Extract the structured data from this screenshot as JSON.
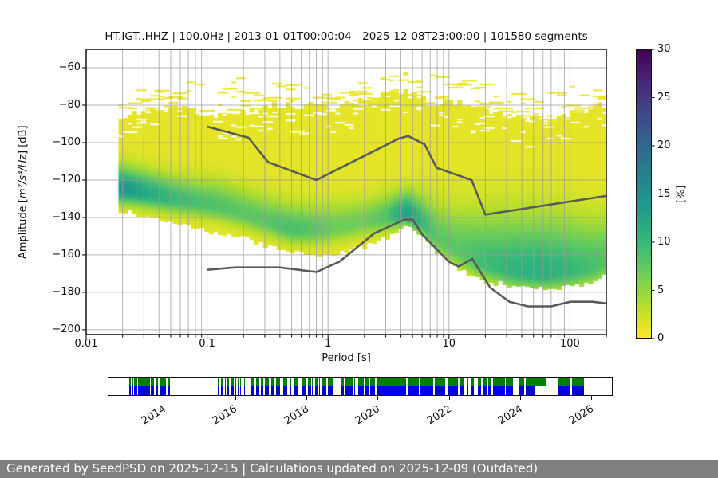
{
  "title": "HT.IGT..HHZ | 100.0Hz | 2013-01-01T00:00:04 - 2025-12-08T23:00:00 | 101580 segments",
  "axes_labels": {
    "xlabel": "Period [s]",
    "ylabel_prefix": "Amplitude [",
    "ylabel_math": "m²/s⁴/Hz",
    "ylabel_suffix": "] [dB]"
  },
  "colors": {
    "noise_model_line": "#5a5a5a",
    "grid": "#9b9b9b",
    "spine": "#111111",
    "footer_bg": "#7f7f7f",
    "footer_text": "#ffffff"
  },
  "chart_data": {
    "type": "heatmap",
    "title": "HT.IGT..HHZ | 100.0Hz | 2013-01-01T00:00:04 - 2025-12-08T23:00:00 | 101580 segments",
    "xlabel": "Period [s]",
    "ylabel": "Amplitude [m²/s⁴/Hz] [dB]",
    "x_scale": "log",
    "grid": true,
    "xlim": [
      0.01,
      200
    ],
    "ylim": [
      -202.6,
      -50.2
    ],
    "x_major_ticks": [
      0.01,
      0.1,
      1,
      10,
      100
    ],
    "x_major_tick_labels": [
      "0.01",
      "0.1",
      "1",
      "10",
      "100"
    ],
    "y_major_ticks": [
      -60,
      -80,
      -100,
      -120,
      -140,
      -160,
      -180,
      -200
    ],
    "y_major_tick_labels": [
      "−60",
      "−80",
      "−100",
      "−120",
      "−140",
      "−160",
      "−180",
      "−200"
    ],
    "noise_models": {
      "high": [
        [
          0.1,
          -91.5
        ],
        [
          0.22,
          -97.4
        ],
        [
          0.32,
          -110.5
        ],
        [
          0.8,
          -120.0
        ],
        [
          3.8,
          -98.0
        ],
        [
          4.6,
          -96.5
        ],
        [
          6.3,
          -101.0
        ],
        [
          7.9,
          -113.5
        ],
        [
          15.4,
          -120.0
        ],
        [
          20,
          -138.5
        ],
        [
          200,
          -128.5
        ]
      ],
      "low": [
        [
          0.1,
          -168.0
        ],
        [
          0.17,
          -166.7
        ],
        [
          0.4,
          -166.7
        ],
        [
          0.8,
          -169.2
        ],
        [
          1.24,
          -163.7
        ],
        [
          2.4,
          -148.6
        ],
        [
          4.3,
          -141.1
        ],
        [
          5,
          -141.1
        ],
        [
          6,
          -149.0
        ],
        [
          10,
          -163.7
        ],
        [
          12,
          -166.2
        ],
        [
          15.6,
          -162.1
        ],
        [
          21.9,
          -177.5
        ],
        [
          31.6,
          -185.0
        ],
        [
          45,
          -187.5
        ],
        [
          70,
          -187.5
        ],
        [
          101,
          -185.0
        ],
        [
          154,
          -185.0
        ],
        [
          200,
          -185.9
        ]
      ]
    },
    "ppsd": {
      "period_range": [
        0.0185,
        200
      ],
      "bins": 108,
      "periods": [
        0.02,
        0.03,
        0.05,
        0.08,
        0.12,
        0.2,
        0.3,
        0.5,
        0.8,
        1.2,
        2,
        3,
        4.5,
        6,
        8,
        12,
        20,
        35,
        60,
        100,
        150,
        200
      ],
      "solid_top_db": [
        -86,
        -83,
        -82,
        -83,
        -85,
        -84,
        -81,
        -80,
        -82,
        -81,
        -77,
        -74,
        -72,
        -75,
        -79,
        -78,
        -82,
        -87,
        -88,
        -85,
        -83,
        -80
      ],
      "mode_db": [
        -125,
        -127,
        -130,
        -132,
        -134,
        -138,
        -142,
        -146.5,
        -147,
        -145.5,
        -142.5,
        -140,
        -138,
        -143,
        -151,
        -158,
        -165,
        -169,
        -170,
        -169,
        -167,
        -164
      ],
      "bottom_db": [
        -136,
        -139,
        -143,
        -146,
        -148,
        -151,
        -155,
        -158,
        -160,
        -159,
        -156,
        -151,
        -144,
        -150,
        -158,
        -167,
        -174,
        -177,
        -178,
        -177,
        -174,
        -171
      ],
      "peak_pct": [
        13,
        11,
        9,
        8,
        7.5,
        7,
        7,
        8,
        7,
        6,
        6,
        7.5,
        12,
        9,
        7,
        7,
        8.5,
        9.5,
        10,
        9,
        8,
        7.5
      ],
      "spread_up_db": [
        8,
        8,
        8,
        8,
        9,
        9,
        9,
        9,
        9,
        9,
        8,
        8,
        8,
        10,
        12,
        15,
        18,
        20,
        20,
        19,
        17,
        16
      ],
      "spread_dn_db": [
        5,
        5,
        5,
        5,
        5,
        5,
        5,
        5,
        5,
        5,
        5,
        5,
        4,
        5,
        6,
        6,
        6,
        6,
        6,
        6,
        6,
        6
      ],
      "frag_top_db": [
        -72,
        -70,
        -68,
        -67,
        -66,
        -64,
        -63,
        -68,
        -71,
        -70,
        -67,
        -64,
        -62,
        -62,
        -63,
        -65,
        -68,
        -72,
        -70,
        -66,
        -63,
        -62
      ]
    },
    "colorbar": {
      "label": "[%]",
      "min": 0,
      "max": 30,
      "ticks": [
        0,
        5,
        10,
        15,
        20,
        25,
        30
      ],
      "tick_labels": [
        "0",
        "5",
        "10",
        "15",
        "20",
        "25",
        "30"
      ],
      "gradient_bottom_to_top": [
        "#fde725",
        "#b5de2b",
        "#6ece58",
        "#35b779",
        "#1f9e89",
        "#26828e",
        "#31688e",
        "#3e4989",
        "#482878",
        "#440154"
      ]
    },
    "timeline": {
      "xlim": [
        2012.43,
        2026.6
      ],
      "year_ticks": [
        2014,
        2016,
        2018,
        2020,
        2022,
        2024,
        2026
      ],
      "year_tick_labels": [
        "2014",
        "2016",
        "2018",
        "2020",
        "2022",
        "2024",
        "2026"
      ],
      "green": "#008000",
      "blue": "#0000e0",
      "segments": [
        [
          2013.04,
          2013.1,
          "b"
        ],
        [
          2013.12,
          2013.16,
          "b"
        ],
        [
          2013.18,
          2013.27,
          "b"
        ],
        [
          2013.3,
          2013.33,
          "b"
        ],
        [
          2013.36,
          2013.45,
          "b"
        ],
        [
          2013.48,
          2013.56,
          "b"
        ],
        [
          2013.59,
          2013.62,
          "b"
        ],
        [
          2013.65,
          2013.75,
          "b"
        ],
        [
          2013.78,
          2013.86,
          "b"
        ],
        [
          2013.92,
          2014.08,
          "b"
        ],
        [
          2014.11,
          2014.18,
          "b"
        ],
        [
          2015.53,
          2015.56,
          "b"
        ],
        [
          2015.63,
          2015.66,
          "b"
        ],
        [
          2015.73,
          2015.76,
          "b"
        ],
        [
          2015.81,
          2015.84,
          "b"
        ],
        [
          2015.91,
          2015.97,
          "b"
        ],
        [
          2016.01,
          2016.04,
          "b"
        ],
        [
          2016.09,
          2016.12,
          "b"
        ],
        [
          2016.16,
          2016.19,
          "b"
        ],
        [
          2016.26,
          2016.29,
          "b"
        ],
        [
          2016.46,
          2016.54,
          "b"
        ],
        [
          2016.61,
          2016.69,
          "b"
        ],
        [
          2016.73,
          2016.8,
          "b"
        ],
        [
          2016.86,
          2016.97,
          "b"
        ],
        [
          2017.02,
          2017.1,
          "b"
        ],
        [
          2017.16,
          2017.27,
          "b"
        ],
        [
          2017.36,
          2017.47,
          "b"
        ],
        [
          2017.56,
          2017.59,
          "b"
        ],
        [
          2017.66,
          2017.77,
          "b"
        ],
        [
          2017.91,
          2017.99,
          "b"
        ],
        [
          2018.06,
          2018.14,
          "b"
        ],
        [
          2018.17,
          2018.2,
          "b"
        ],
        [
          2018.26,
          2018.34,
          "b"
        ],
        [
          2018.37,
          2018.4,
          "b"
        ],
        [
          2018.46,
          2018.57,
          "b"
        ],
        [
          2018.61,
          2018.77,
          "b"
        ],
        [
          2019.01,
          2019.06,
          "b"
        ],
        [
          2019.11,
          2019.32,
          "b"
        ],
        [
          2019.36,
          2019.39,
          "b"
        ],
        [
          2019.46,
          2019.62,
          "b"
        ],
        [
          2019.65,
          2019.77,
          "b"
        ],
        [
          2019.8,
          2019.87,
          "b"
        ],
        [
          2019.9,
          2019.95,
          "b"
        ],
        [
          2019.98,
          2020.32,
          "b"
        ],
        [
          2020.35,
          2020.82,
          "b"
        ],
        [
          2020.85,
          2021.17,
          "b"
        ],
        [
          2021.2,
          2021.57,
          "b"
        ],
        [
          2021.62,
          2021.92,
          "b"
        ],
        [
          2021.97,
          2022.27,
          "b"
        ],
        [
          2022.32,
          2022.42,
          "b"
        ],
        [
          2022.52,
          2022.55,
          "b"
        ],
        [
          2022.62,
          2022.72,
          "b"
        ],
        [
          2022.82,
          2022.92,
          "b"
        ],
        [
          2022.97,
          2023.07,
          "b"
        ],
        [
          2023.12,
          2023.22,
          "b"
        ],
        [
          2023.26,
          2023.29,
          "b"
        ],
        [
          2023.33,
          2023.58,
          "b"
        ],
        [
          2023.62,
          2023.82,
          "b"
        ],
        [
          2023.96,
          2024.12,
          "b"
        ],
        [
          2024.16,
          2024.42,
          "b"
        ],
        [
          2024.45,
          2024.76,
          "g"
        ],
        [
          2025.07,
          2025.43,
          "b"
        ],
        [
          2025.48,
          2025.81,
          "b"
        ]
      ]
    }
  },
  "footer": {
    "text": "Generated by SeedPSD on 2025-12-15 | Calculations updated on 2025-12-09 (Outdated)"
  }
}
